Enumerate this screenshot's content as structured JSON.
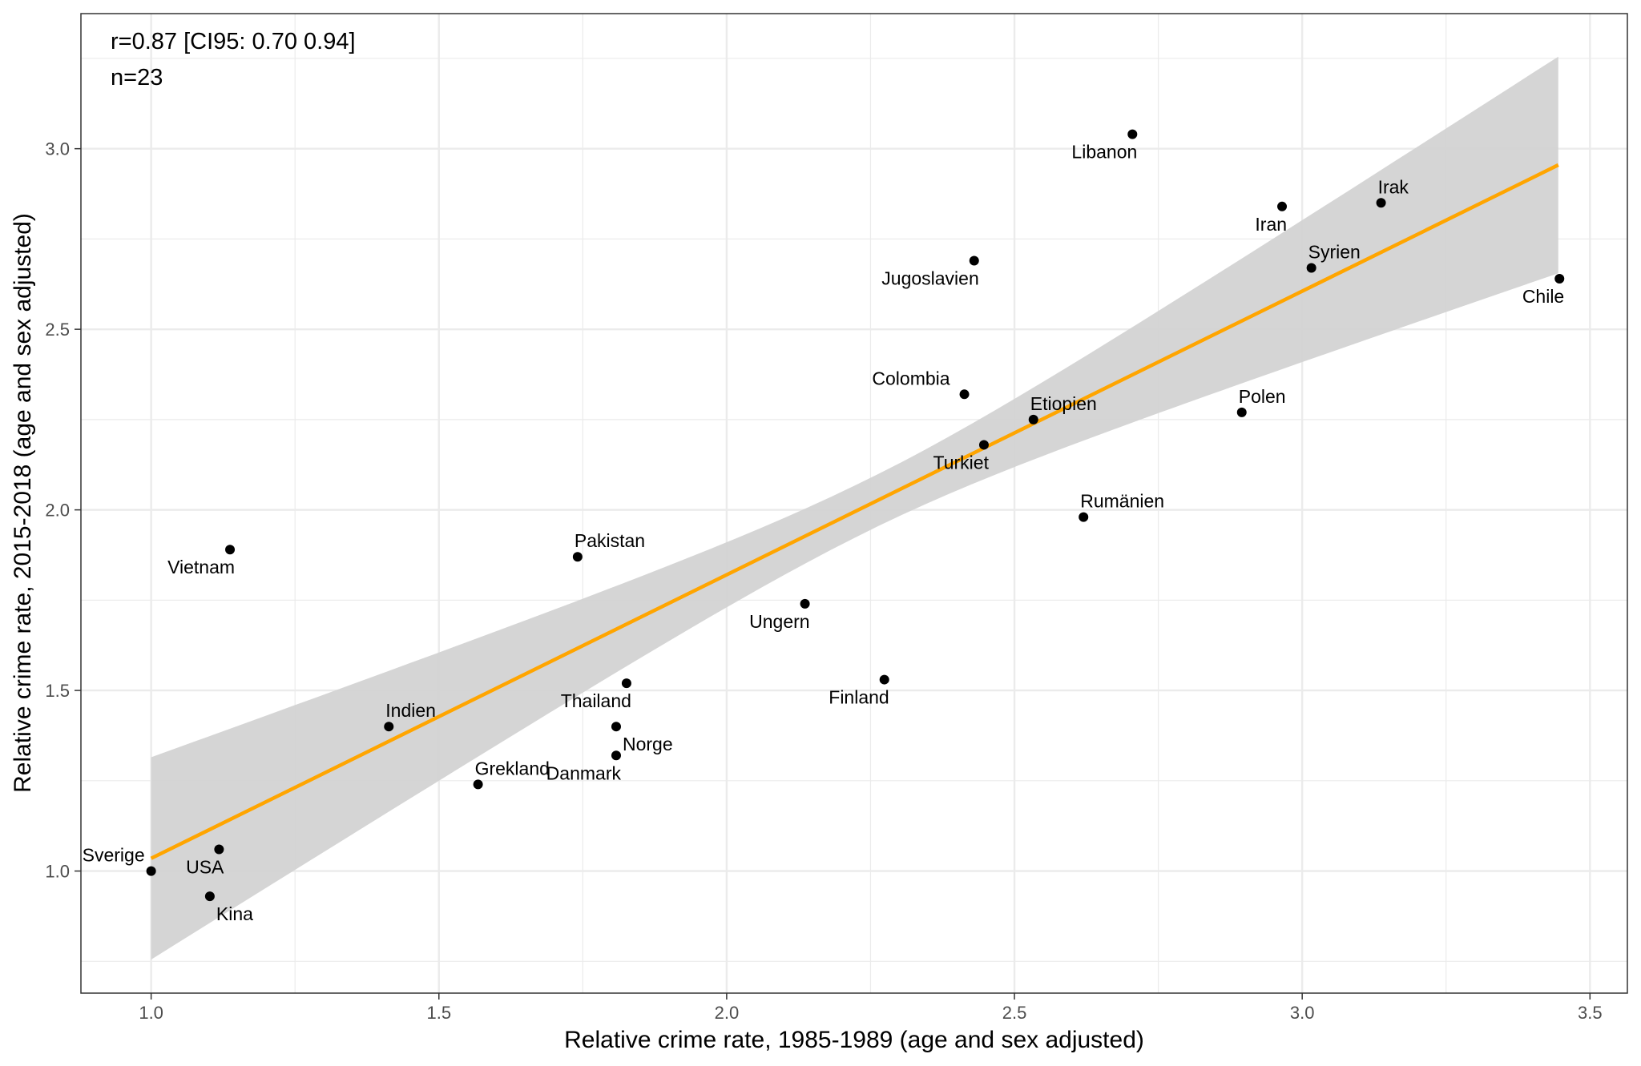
{
  "chart_data": {
    "type": "scatter",
    "title": "",
    "xlabel": "Relative crime rate, 1985-1989 (age and sex adjusted)",
    "ylabel": "Relative crime rate, 2015-2018 (age and sex adjusted)",
    "xlim": [
      0.878,
      3.565
    ],
    "ylim": [
      0.662,
      3.374
    ],
    "x_ticks": [
      1.0,
      1.5,
      2.0,
      2.5,
      3.0,
      3.5
    ],
    "x_tick_labels": [
      "1.0",
      "1.5",
      "2.0",
      "2.5",
      "3.0",
      "3.5"
    ],
    "y_ticks": [
      1.0,
      1.5,
      2.0,
      2.5,
      3.0
    ],
    "y_tick_labels": [
      "1.0",
      "1.5",
      "2.0",
      "2.5",
      "3.0"
    ],
    "grid": true,
    "annotations": [
      "r=0.87 [CI95: 0.70 0.94]",
      "n=23"
    ],
    "regression": {
      "color": "#FFA500",
      "x_range": [
        1.0,
        3.445
      ],
      "line": [
        1.035,
        2.955
      ],
      "ci_lower": [
        0.755,
        2.655
      ],
      "ci_upper": [
        1.315,
        3.255
      ],
      "ci_color": "#d3d3d3"
    },
    "points": [
      {
        "label": "Sverige",
        "x": 1.0,
        "y": 1.0,
        "anchor": "left"
      },
      {
        "label": "USA",
        "x": 1.118,
        "y": 1.06,
        "anchor": "below-left"
      },
      {
        "label": "Kina",
        "x": 1.102,
        "y": 0.93,
        "anchor": "below-right"
      },
      {
        "label": "Vietnam",
        "x": 1.137,
        "y": 1.89,
        "anchor": "below-left"
      },
      {
        "label": "Indien",
        "x": 1.413,
        "y": 1.4,
        "anchor": "above-right"
      },
      {
        "label": "Grekland",
        "x": 1.568,
        "y": 1.24,
        "anchor": "above-right"
      },
      {
        "label": "Pakistan",
        "x": 1.741,
        "y": 1.87,
        "anchor": "above-right"
      },
      {
        "label": "Thailand",
        "x": 1.826,
        "y": 1.52,
        "anchor": "below-left"
      },
      {
        "label": "Norge",
        "x": 1.808,
        "y": 1.4,
        "anchor": "below-right"
      },
      {
        "label": "Danmark",
        "x": 1.808,
        "y": 1.32,
        "anchor": "below-left"
      },
      {
        "label": "Ungern",
        "x": 2.136,
        "y": 1.74,
        "anchor": "below-left"
      },
      {
        "label": "Finland",
        "x": 2.274,
        "y": 1.53,
        "anchor": "below-left"
      },
      {
        "label": "Colombia",
        "x": 2.413,
        "y": 2.32,
        "anchor": "above-left"
      },
      {
        "label": "Jugoslavien",
        "x": 2.43,
        "y": 2.69,
        "anchor": "below-left"
      },
      {
        "label": "Turkiet",
        "x": 2.447,
        "y": 2.18,
        "anchor": "below-left"
      },
      {
        "label": "Etiopien",
        "x": 2.533,
        "y": 2.25,
        "anchor": "above-right"
      },
      {
        "label": "Rumänien",
        "x": 2.62,
        "y": 1.98,
        "anchor": "above-right"
      },
      {
        "label": "Libanon",
        "x": 2.705,
        "y": 3.04,
        "anchor": "below-left"
      },
      {
        "label": "Polen",
        "x": 2.895,
        "y": 2.27,
        "anchor": "above-right"
      },
      {
        "label": "Iran",
        "x": 2.965,
        "y": 2.84,
        "anchor": "below-left"
      },
      {
        "label": "Syrien",
        "x": 3.016,
        "y": 2.67,
        "anchor": "above-right"
      },
      {
        "label": "Irak",
        "x": 3.137,
        "y": 2.85,
        "anchor": "above-right"
      },
      {
        "label": "Chile",
        "x": 3.447,
        "y": 2.64,
        "anchor": "below-left"
      }
    ]
  }
}
